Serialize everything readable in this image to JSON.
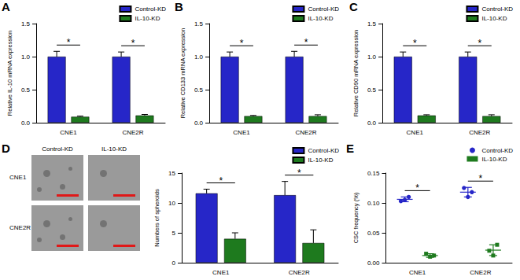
{
  "chart_data": [
    {
      "panel": "A",
      "type": "bar",
      "y_label": "Relative IL-10 mRNA expression",
      "categories": [
        "CNE1",
        "CNE2R"
      ],
      "series": [
        {
          "name": "Control-KD",
          "color": "#2626c8",
          "values": [
            1.0,
            1.0
          ],
          "errors": [
            0.08,
            0.07
          ]
        },
        {
          "name": "IL-10-KD",
          "color": "#1e7a1e",
          "values": [
            0.09,
            0.11
          ],
          "errors": [
            0.01,
            0.015
          ]
        }
      ],
      "significance": [
        "*",
        "*"
      ],
      "ylim": [
        0,
        1.5
      ],
      "yticks": [
        {
          "value": 0,
          "label": "0.0"
        },
        0.5,
        {
          "value": 1,
          "label": "1.0"
        },
        1.5
      ],
      "grid": false,
      "legend": "upper right"
    },
    {
      "panel": "B",
      "type": "bar",
      "y_label": "Relative CD133 mRNA expression",
      "categories": [
        "CNE1",
        "CNE2R"
      ],
      "series": [
        {
          "name": "Control-KD",
          "color": "#2626c8",
          "values": [
            1.0,
            1.0
          ],
          "errors": [
            0.07,
            0.08
          ]
        },
        {
          "name": "IL-10-KD",
          "color": "#1e7a1e",
          "values": [
            0.1,
            0.1
          ],
          "errors": [
            0.01,
            0.02
          ]
        }
      ],
      "significance": [
        "*",
        "*"
      ],
      "ylim": [
        0,
        1.5
      ],
      "yticks": [
        {
          "value": 0,
          "label": "0.0"
        },
        0.5,
        {
          "value": 1,
          "label": "1.0"
        },
        1.5
      ],
      "grid": false,
      "legend": "upper right"
    },
    {
      "panel": "C",
      "type": "bar",
      "y_label": "Relative CD90 mRNA expression",
      "categories": [
        "CNE1",
        "CNE2R"
      ],
      "series": [
        {
          "name": "Control-KD",
          "color": "#2626c8",
          "values": [
            1.0,
            1.0
          ],
          "errors": [
            0.07,
            0.07
          ]
        },
        {
          "name": "IL-10-KD",
          "color": "#1e7a1e",
          "values": [
            0.11,
            0.1
          ],
          "errors": [
            0.01,
            0.02
          ]
        }
      ],
      "significance": [
        "*",
        "*"
      ],
      "ylim": [
        0,
        1.5
      ],
      "yticks": [
        {
          "value": 0,
          "label": "0.0"
        },
        0.5,
        {
          "value": 1,
          "label": "1.0"
        },
        1.5
      ],
      "grid": false,
      "legend": "upper right"
    },
    {
      "panel": "D",
      "type": "bar",
      "y_label": "Numbers of spheroids",
      "categories": [
        "CNE1",
        "CNE2R"
      ],
      "series": [
        {
          "name": "Control-KD",
          "color": "#2626c8",
          "values": [
            11.6,
            11.3
          ],
          "errors": [
            0.7,
            2.3
          ]
        },
        {
          "name": "IL-10-KD",
          "color": "#1e7a1e",
          "values": [
            4.0,
            3.3
          ],
          "errors": [
            1.0,
            2.2
          ]
        }
      ],
      "significance": [
        "*",
        "*"
      ],
      "ylim": [
        0,
        15
      ],
      "yticks": [
        0,
        5,
        10,
        15
      ],
      "grid": false,
      "legend": "upper right"
    },
    {
      "panel": "E",
      "type": "scatter",
      "y_label": "CSC frequency (%)",
      "categories": [
        "CNE1",
        "CNE2R"
      ],
      "series": [
        {
          "name": "Control-KD",
          "color": "#2626c8",
          "marker": "circle",
          "points": [
            [
              0.103,
              0.11,
              0.105
            ],
            [
              0.125,
              0.118,
              0.11
            ]
          ],
          "mean": [
            0.106,
            0.118
          ],
          "sd": [
            0.004,
            0.008
          ]
        },
        {
          "name": "IL-10-KD",
          "color": "#1e7a1e",
          "marker": "square",
          "points": [
            [
              0.015,
              0.012,
              0.01
            ],
            [
              0.02,
              0.03,
              0.012
            ]
          ],
          "mean": [
            0.012,
            0.021
          ],
          "sd": [
            0.003,
            0.009
          ]
        }
      ],
      "significance": [
        "*",
        "*"
      ],
      "ylim": [
        0,
        0.15
      ],
      "yticks": [
        {
          "value": 0,
          "label": "0.00"
        },
        {
          "value": 0.05,
          "label": "0.05"
        },
        {
          "value": 0.1,
          "label": "0.10"
        },
        {
          "value": 0.15,
          "label": "0.15"
        }
      ],
      "grid": false,
      "legend": "upper right"
    }
  ],
  "images": {
    "columns": [
      "Control-KD",
      "IL-10-KD"
    ],
    "rows": [
      "CNE1",
      "CNE2R"
    ]
  }
}
